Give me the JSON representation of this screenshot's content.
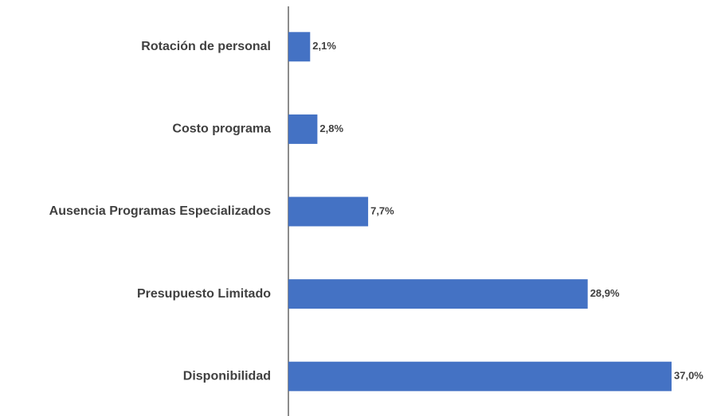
{
  "chart_data": {
    "type": "hbar",
    "categories": [
      "Rotación de personal",
      "Costo programa",
      "Ausencia Programas Especializados",
      "Presupuesto Limitado",
      "Disponibilidad"
    ],
    "values": [
      2.1,
      2.8,
      7.7,
      28.9,
      37.0
    ],
    "value_labels": [
      "2,1%",
      "2,8%",
      "7,7%",
      "28,9%",
      "37,0%"
    ],
    "color": "#4472c4"
  }
}
